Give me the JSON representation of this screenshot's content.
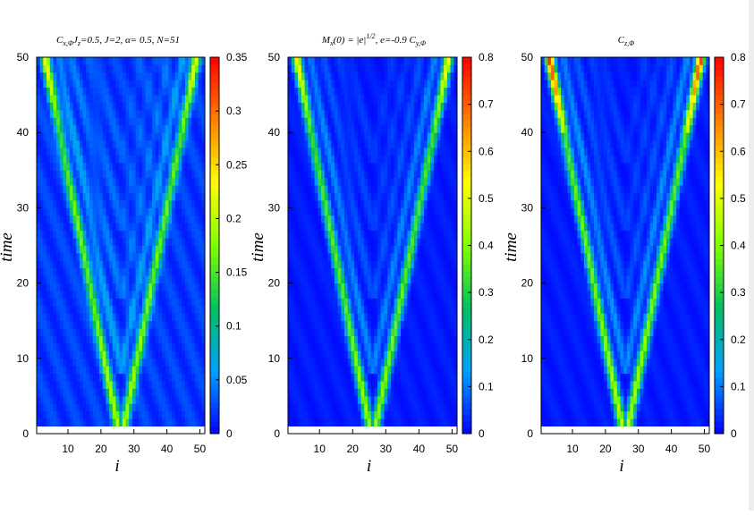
{
  "chart_data": [
    {
      "type": "heatmap",
      "title": "C",
      "title_sub": "x,Φ",
      "title_rest": "J",
      "title_sub2": "z",
      "title_tail": "=0.5,  J=2, α= 0.5, N=51",
      "xlabel": "i",
      "ylabel": "time",
      "xlim": [
        0.5,
        51.5
      ],
      "ylim": [
        0,
        50
      ],
      "xticks": [
        "10",
        "20",
        "30",
        "40",
        "50"
      ],
      "yticks": [
        "0",
        "10",
        "20",
        "30",
        "40",
        "50"
      ],
      "cbar_ticks": [
        "0",
        "0.05",
        "0.1",
        "0.15",
        "0.2",
        "0.25",
        "0.3",
        "0.35"
      ],
      "zlim": [
        0,
        0.35
      ],
      "colormap": [
        "#0000ff",
        "#00a0ff",
        "#00c060",
        "#80ff00",
        "#ffff00",
        "#ff8000",
        "#ff0000"
      ],
      "source_site": 26,
      "front_speed": 0.45,
      "peak_value": 0.18,
      "edge_value": 0.22
    },
    {
      "type": "heatmap",
      "title": "M",
      "title_sub": "x",
      "title_rest": "(0) = |e|",
      "title_sup": "1/2",
      "title_tail": ", e=-0.9  C",
      "title_sub2": "y,Φ",
      "xlabel": "i",
      "ylabel": "time",
      "xlim": [
        0.5,
        51.5
      ],
      "ylim": [
        0,
        50
      ],
      "xticks": [
        "10",
        "20",
        "30",
        "40",
        "50"
      ],
      "yticks": [
        "0",
        "10",
        "20",
        "30",
        "40",
        "50"
      ],
      "cbar_ticks": [
        "0",
        "0.1",
        "0.2",
        "0.3",
        "0.4",
        "0.5",
        "0.6",
        "0.7",
        "0.8"
      ],
      "zlim": [
        0,
        0.8
      ],
      "colormap": [
        "#0000ff",
        "#00a0ff",
        "#00c060",
        "#80ff00",
        "#ffff00",
        "#ff8000",
        "#ff0000"
      ],
      "source_site": 26,
      "front_speed": 0.45,
      "peak_value": 0.42,
      "edge_value": 0.55
    },
    {
      "type": "heatmap",
      "title": "C",
      "title_sub": "z,Φ",
      "xlabel": "i",
      "ylabel": "time",
      "xlim": [
        0.5,
        51.5
      ],
      "ylim": [
        0,
        50
      ],
      "xticks": [
        "10",
        "20",
        "30",
        "40",
        "50"
      ],
      "yticks": [
        "0",
        "10",
        "20",
        "30",
        "40",
        "50"
      ],
      "cbar_ticks": [
        "0",
        "0.1",
        "0.2",
        "0.3",
        "0.4",
        "0.5",
        "0.6",
        "0.7",
        "0.8"
      ],
      "zlim": [
        0,
        0.8
      ],
      "colormap": [
        "#0000ff",
        "#00a0ff",
        "#00c060",
        "#80ff00",
        "#ffff00",
        "#ff8000",
        "#ff0000"
      ],
      "source_site": 26,
      "front_speed": 0.45,
      "peak_value": 0.45,
      "edge_value": 0.75
    }
  ]
}
